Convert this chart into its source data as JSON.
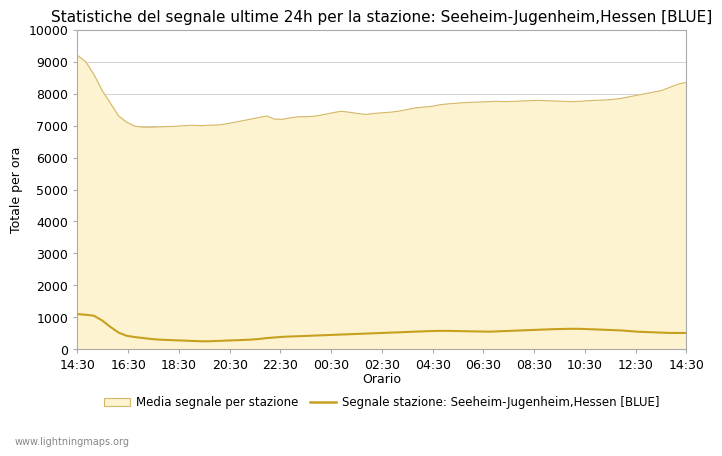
{
  "title": "Statistiche del segnale ultime 24h per la stazione: Seeheim-Jugenheim,Hessen [BLUE]",
  "xlabel": "Orario",
  "ylabel": "Totale per ora",
  "ylim": [
    0,
    10000
  ],
  "yticks": [
    0,
    1000,
    2000,
    3000,
    4000,
    5000,
    6000,
    7000,
    8000,
    9000,
    10000
  ],
  "xtick_labels": [
    "14:30",
    "16:30",
    "18:30",
    "20:30",
    "22:30",
    "00:30",
    "02:30",
    "04:30",
    "06:30",
    "08:30",
    "10:30",
    "12:30",
    "14:30"
  ],
  "fill_color": "#fdf3d0",
  "fill_edge_color": "#d4b86a",
  "line_color": "#c8a020",
  "background_color": "#ffffff",
  "grid_color": "#cccccc",
  "watermark": "www.lightningmaps.org",
  "legend_fill_label": "Media segnale per stazione",
  "legend_line_label": "Segnale stazione: Seeheim-Jugenheim,Hessen [BLUE]",
  "title_fontsize": 11,
  "axis_label_fontsize": 9,
  "tick_fontsize": 9,
  "media_values": [
    9200,
    9000,
    8600,
    8100,
    7700,
    7300,
    7100,
    6980,
    6950,
    6950,
    6960,
    6970,
    6980,
    7000,
    7010,
    7000,
    7010,
    7020,
    7050,
    7100,
    7150,
    7200,
    7250,
    7300,
    7200,
    7200,
    7250,
    7280,
    7280,
    7300,
    7350,
    7400,
    7450,
    7420,
    7380,
    7350,
    7380,
    7400,
    7420,
    7450,
    7500,
    7550,
    7580,
    7600,
    7650,
    7680,
    7700,
    7720,
    7730,
    7740,
    7750,
    7760,
    7750,
    7760,
    7770,
    7780,
    7790,
    7780,
    7770,
    7760,
    7750,
    7760,
    7780,
    7790,
    7800,
    7820,
    7850,
    7900,
    7950,
    8000,
    8050,
    8100,
    8200,
    8300,
    8350
  ],
  "signal_values": [
    1100,
    1080,
    1050,
    900,
    700,
    520,
    420,
    380,
    350,
    320,
    300,
    290,
    280,
    270,
    260,
    250,
    250,
    260,
    270,
    280,
    290,
    300,
    320,
    350,
    370,
    390,
    400,
    410,
    420,
    430,
    440,
    450,
    460,
    470,
    480,
    490,
    500,
    510,
    520,
    530,
    540,
    550,
    560,
    570,
    575,
    575,
    570,
    565,
    560,
    555,
    550,
    560,
    570,
    580,
    590,
    600,
    610,
    620,
    630,
    635,
    640,
    640,
    630,
    620,
    610,
    600,
    590,
    570,
    550,
    540,
    530,
    520,
    510,
    510,
    510
  ]
}
